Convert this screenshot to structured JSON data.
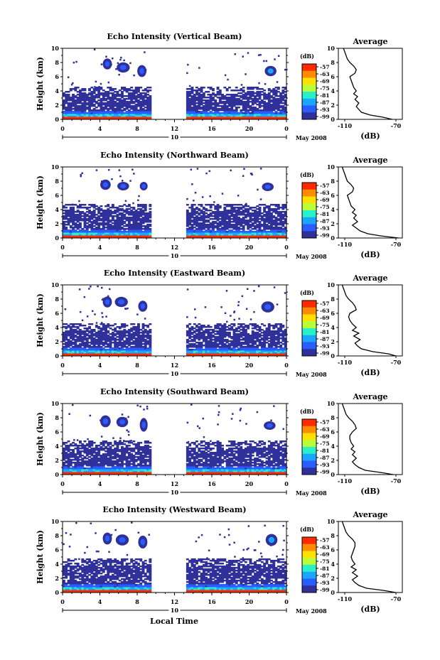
{
  "figure": {
    "xlabel": "Local Time",
    "colorbar_unit": "(dB)",
    "colorbar_ticks": [
      "-57",
      "-63",
      "-69",
      "-75",
      "-81",
      "-87",
      "-93",
      "-99"
    ],
    "colorbar_colors": [
      "#ff2a00",
      "#ff8c00",
      "#ffe000",
      "#b8ff3a",
      "#29f0c8",
      "#1aa6ff",
      "#2a5cff",
      "#30309a"
    ],
    "date_label": "May 2008",
    "date_day": "10",
    "profile_title": "Average",
    "profile_xlabel": "(dB)"
  },
  "chart_data": [
    {
      "type": "heatmap",
      "title": "Echo Intensity (Vertical Beam)",
      "xlabel": "Local Time",
      "ylabel": "Height (km)",
      "x_ticks": [
        "0",
        "4",
        "8",
        "12",
        "16",
        "20",
        "0"
      ],
      "xlim": [
        0,
        24
      ],
      "y_ticks": [
        "0",
        "2",
        "4",
        "6",
        "8",
        "10"
      ],
      "ylim": [
        0,
        10
      ],
      "z_unit": "dB",
      "z_range": [
        -99,
        -57
      ],
      "data_gap_hours": [
        9.5,
        13.2
      ],
      "grid_data": {
        "cloud_cells": [
          {
            "t": 4.8,
            "h": 7.8,
            "dt": 0.7,
            "dh": 1.3,
            "z": -90
          },
          {
            "t": 6.5,
            "h": 7.3,
            "dt": 1.0,
            "dh": 1.2,
            "z": -90
          },
          {
            "t": 8.5,
            "h": 6.8,
            "dt": 0.7,
            "dh": 1.4,
            "z": -89
          },
          {
            "t": 22.3,
            "h": 6.8,
            "dt": 0.9,
            "dh": 1.2,
            "z": -88
          }
        ],
        "boundary_layer_top_km": 4.5,
        "surface_max_dB": -57
      },
      "profile": {
        "title": "Average",
        "xlabel": "(dB)",
        "x_ticks": [
          "-110",
          "-70"
        ],
        "xlim": [
          -115,
          -65
        ],
        "y_ticks": [
          "0",
          "2",
          "4",
          "6",
          "8",
          "10"
        ],
        "ylim": [
          0,
          10
        ],
        "heights": [
          0,
          0.3,
          0.6,
          1.0,
          1.4,
          1.8,
          2.3,
          2.8,
          3.2,
          3.6,
          4.0,
          4.5,
          5.0,
          5.5,
          6.0,
          6.5,
          7.0,
          7.5,
          8.0,
          8.5,
          9.0,
          9.5,
          10.0
        ],
        "values": [
          -73,
          -80,
          -90,
          -97,
          -99,
          -101,
          -99,
          -102,
          -100,
          -103,
          -101,
          -103,
          -104,
          -105,
          -106,
          -102,
          -101,
          -103,
          -106,
          -108,
          -109,
          -110,
          -111
        ]
      }
    },
    {
      "type": "heatmap",
      "title": "Echo Intensity (Northward Beam)",
      "xlabel": "Local Time",
      "ylabel": "Height (km)",
      "x_ticks": [
        "0",
        "4",
        "8",
        "12",
        "16",
        "20",
        "0"
      ],
      "xlim": [
        0,
        24
      ],
      "y_ticks": [
        "0",
        "2",
        "4",
        "6",
        "8",
        "10"
      ],
      "ylim": [
        0,
        10
      ],
      "z_unit": "dB",
      "z_range": [
        -99,
        -57
      ],
      "data_gap_hours": [
        9.5,
        13.2
      ],
      "grid_data": {
        "cloud_cells": [
          {
            "t": 4.6,
            "h": 7.5,
            "dt": 0.8,
            "dh": 1.2,
            "z": -90
          },
          {
            "t": 6.5,
            "h": 7.3,
            "dt": 0.9,
            "dh": 1.0,
            "z": -91
          },
          {
            "t": 8.7,
            "h": 7.3,
            "dt": 0.6,
            "dh": 1.0,
            "z": -90
          },
          {
            "t": 22.0,
            "h": 7.2,
            "dt": 0.9,
            "dh": 1.0,
            "z": -89
          }
        ],
        "boundary_layer_top_km": 4.8,
        "surface_max_dB": -60
      },
      "profile": {
        "title": "Average",
        "xlabel": "(dB)",
        "x_ticks": [
          "-110",
          "-70"
        ],
        "xlim": [
          -115,
          -65
        ],
        "y_ticks": [
          "0",
          "2",
          "4",
          "6",
          "8",
          "10"
        ],
        "ylim": [
          0,
          10
        ],
        "heights": [
          0,
          0.3,
          0.6,
          1.0,
          1.4,
          1.8,
          2.3,
          2.8,
          3.2,
          3.6,
          4.0,
          4.5,
          5.0,
          5.5,
          6.0,
          6.5,
          7.0,
          7.5,
          8.0,
          8.5,
          9.0,
          9.5,
          10.0
        ],
        "values": [
          -68,
          -82,
          -92,
          -98,
          -101,
          -104,
          -100,
          -103,
          -101,
          -104,
          -102,
          -105,
          -106,
          -107,
          -108,
          -104,
          -103,
          -105,
          -108,
          -109,
          -110,
          -111,
          -112
        ]
      }
    },
    {
      "type": "heatmap",
      "title": "Echo Intensity (Eastward Beam)",
      "xlabel": "Local Time",
      "ylabel": "Height (km)",
      "x_ticks": [
        "0",
        "4",
        "8",
        "12",
        "16",
        "20",
        "0"
      ],
      "xlim": [
        0,
        24
      ],
      "y_ticks": [
        "0",
        "2",
        "4",
        "6",
        "8",
        "10"
      ],
      "ylim": [
        0,
        10
      ],
      "z_unit": "dB",
      "z_range": [
        -99,
        -57
      ],
      "data_gap_hours": [
        9.5,
        13.2
      ],
      "grid_data": {
        "cloud_cells": [
          {
            "t": 4.8,
            "h": 7.6,
            "dt": 0.7,
            "dh": 1.3,
            "z": -90
          },
          {
            "t": 6.3,
            "h": 7.6,
            "dt": 1.0,
            "dh": 1.2,
            "z": -91
          },
          {
            "t": 8.6,
            "h": 7.0,
            "dt": 0.7,
            "dh": 1.3,
            "z": -90
          },
          {
            "t": 22.0,
            "h": 6.9,
            "dt": 1.0,
            "dh": 1.3,
            "z": -89
          }
        ],
        "boundary_layer_top_km": 4.6,
        "surface_max_dB": -57
      },
      "profile": {
        "title": "Average",
        "xlabel": "(dB)",
        "x_ticks": [
          "-110",
          "-70"
        ],
        "xlim": [
          -115,
          -65
        ],
        "y_ticks": [
          "0",
          "2",
          "4",
          "6",
          "8",
          "10"
        ],
        "ylim": [
          0,
          10
        ],
        "heights": [
          0,
          0.3,
          0.6,
          1.0,
          1.4,
          1.8,
          2.3,
          2.8,
          3.2,
          3.6,
          4.0,
          4.5,
          5.0,
          5.5,
          6.0,
          6.5,
          7.0,
          7.5,
          8.0,
          8.5,
          9.0,
          9.5,
          10.0
        ],
        "values": [
          -70,
          -76,
          -88,
          -97,
          -100,
          -102,
          -98,
          -103,
          -99,
          -104,
          -101,
          -104,
          -106,
          -107,
          -106,
          -101,
          -102,
          -104,
          -107,
          -109,
          -110,
          -111,
          -112
        ]
      }
    },
    {
      "type": "heatmap",
      "title": "Echo Intensity (Southward Beam)",
      "xlabel": "Local Time",
      "ylabel": "Height (km)",
      "x_ticks": [
        "0",
        "4",
        "8",
        "12",
        "16",
        "20",
        "0"
      ],
      "xlim": [
        0,
        24
      ],
      "y_ticks": [
        "0",
        "2",
        "4",
        "6",
        "8",
        "10"
      ],
      "ylim": [
        0,
        10
      ],
      "z_unit": "dB",
      "z_range": [
        -99,
        -57
      ],
      "data_gap_hours": [
        9.5,
        13.2
      ],
      "grid_data": {
        "cloud_cells": [
          {
            "t": 4.6,
            "h": 7.5,
            "dt": 0.8,
            "dh": 1.4,
            "z": -90
          },
          {
            "t": 6.4,
            "h": 7.4,
            "dt": 0.9,
            "dh": 1.2,
            "z": -91
          },
          {
            "t": 8.7,
            "h": 7.0,
            "dt": 0.6,
            "dh": 1.6,
            "z": -90
          },
          {
            "t": 22.2,
            "h": 6.9,
            "dt": 0.9,
            "dh": 1.0,
            "z": -89
          }
        ],
        "boundary_layer_top_km": 4.7,
        "surface_max_dB": -57
      },
      "profile": {
        "title": "Average",
        "xlabel": "(dB)",
        "x_ticks": [
          "-110",
          "-70"
        ],
        "xlim": [
          -115,
          -65
        ],
        "y_ticks": [
          "0",
          "2",
          "4",
          "6",
          "8",
          "10"
        ],
        "ylim": [
          0,
          10
        ],
        "heights": [
          0,
          0.3,
          0.6,
          1.0,
          1.4,
          1.8,
          2.3,
          2.8,
          3.2,
          3.6,
          4.0,
          4.5,
          5.0,
          5.5,
          6.0,
          6.5,
          7.0,
          7.5,
          8.0,
          8.5,
          9.0,
          9.5,
          10.0
        ],
        "values": [
          -72,
          -82,
          -94,
          -99,
          -102,
          -104,
          -101,
          -104,
          -102,
          -105,
          -103,
          -105,
          -106,
          -106,
          -104,
          -101,
          -102,
          -104,
          -107,
          -109,
          -110,
          -111,
          -112
        ]
      }
    },
    {
      "type": "heatmap",
      "title": "Echo Intensity (Westward Beam)",
      "xlabel": "Local Time",
      "ylabel": "Height (km)",
      "x_ticks": [
        "0",
        "4",
        "8",
        "12",
        "16",
        "20",
        "0"
      ],
      "xlim": [
        0,
        24
      ],
      "y_ticks": [
        "0",
        "2",
        "4",
        "6",
        "8",
        "10"
      ],
      "ylim": [
        0,
        10
      ],
      "z_unit": "dB",
      "z_range": [
        -99,
        -57
      ],
      "data_gap_hours": [
        9.5,
        13.2
      ],
      "grid_data": {
        "cloud_cells": [
          {
            "t": 4.8,
            "h": 7.6,
            "dt": 0.7,
            "dh": 1.4,
            "z": -90
          },
          {
            "t": 6.4,
            "h": 7.4,
            "dt": 1.0,
            "dh": 1.3,
            "z": -91
          },
          {
            "t": 8.6,
            "h": 7.1,
            "dt": 0.7,
            "dh": 1.5,
            "z": -90
          },
          {
            "t": 22.4,
            "h": 7.4,
            "dt": 0.9,
            "dh": 1.4,
            "z": -88
          }
        ],
        "boundary_layer_top_km": 4.7,
        "surface_max_dB": -58
      },
      "profile": {
        "title": "Average",
        "xlabel": "(dB)",
        "x_ticks": [
          "-110",
          "-70"
        ],
        "xlim": [
          -115,
          -65
        ],
        "y_ticks": [
          "0",
          "2",
          "4",
          "6",
          "8",
          "10"
        ],
        "ylim": [
          0,
          10
        ],
        "heights": [
          0,
          0.3,
          0.6,
          1.0,
          1.4,
          1.8,
          2.3,
          2.8,
          3.2,
          3.6,
          4.0,
          4.5,
          5.0,
          5.5,
          6.0,
          6.5,
          7.0,
          7.5,
          8.0,
          8.5,
          9.0,
          9.5,
          10.0
        ],
        "values": [
          -70,
          -80,
          -93,
          -99,
          -102,
          -104,
          -100,
          -104,
          -101,
          -105,
          -102,
          -104,
          -105,
          -104,
          -103,
          -102,
          -102,
          -104,
          -107,
          -109,
          -110,
          -111,
          -112
        ]
      }
    }
  ]
}
